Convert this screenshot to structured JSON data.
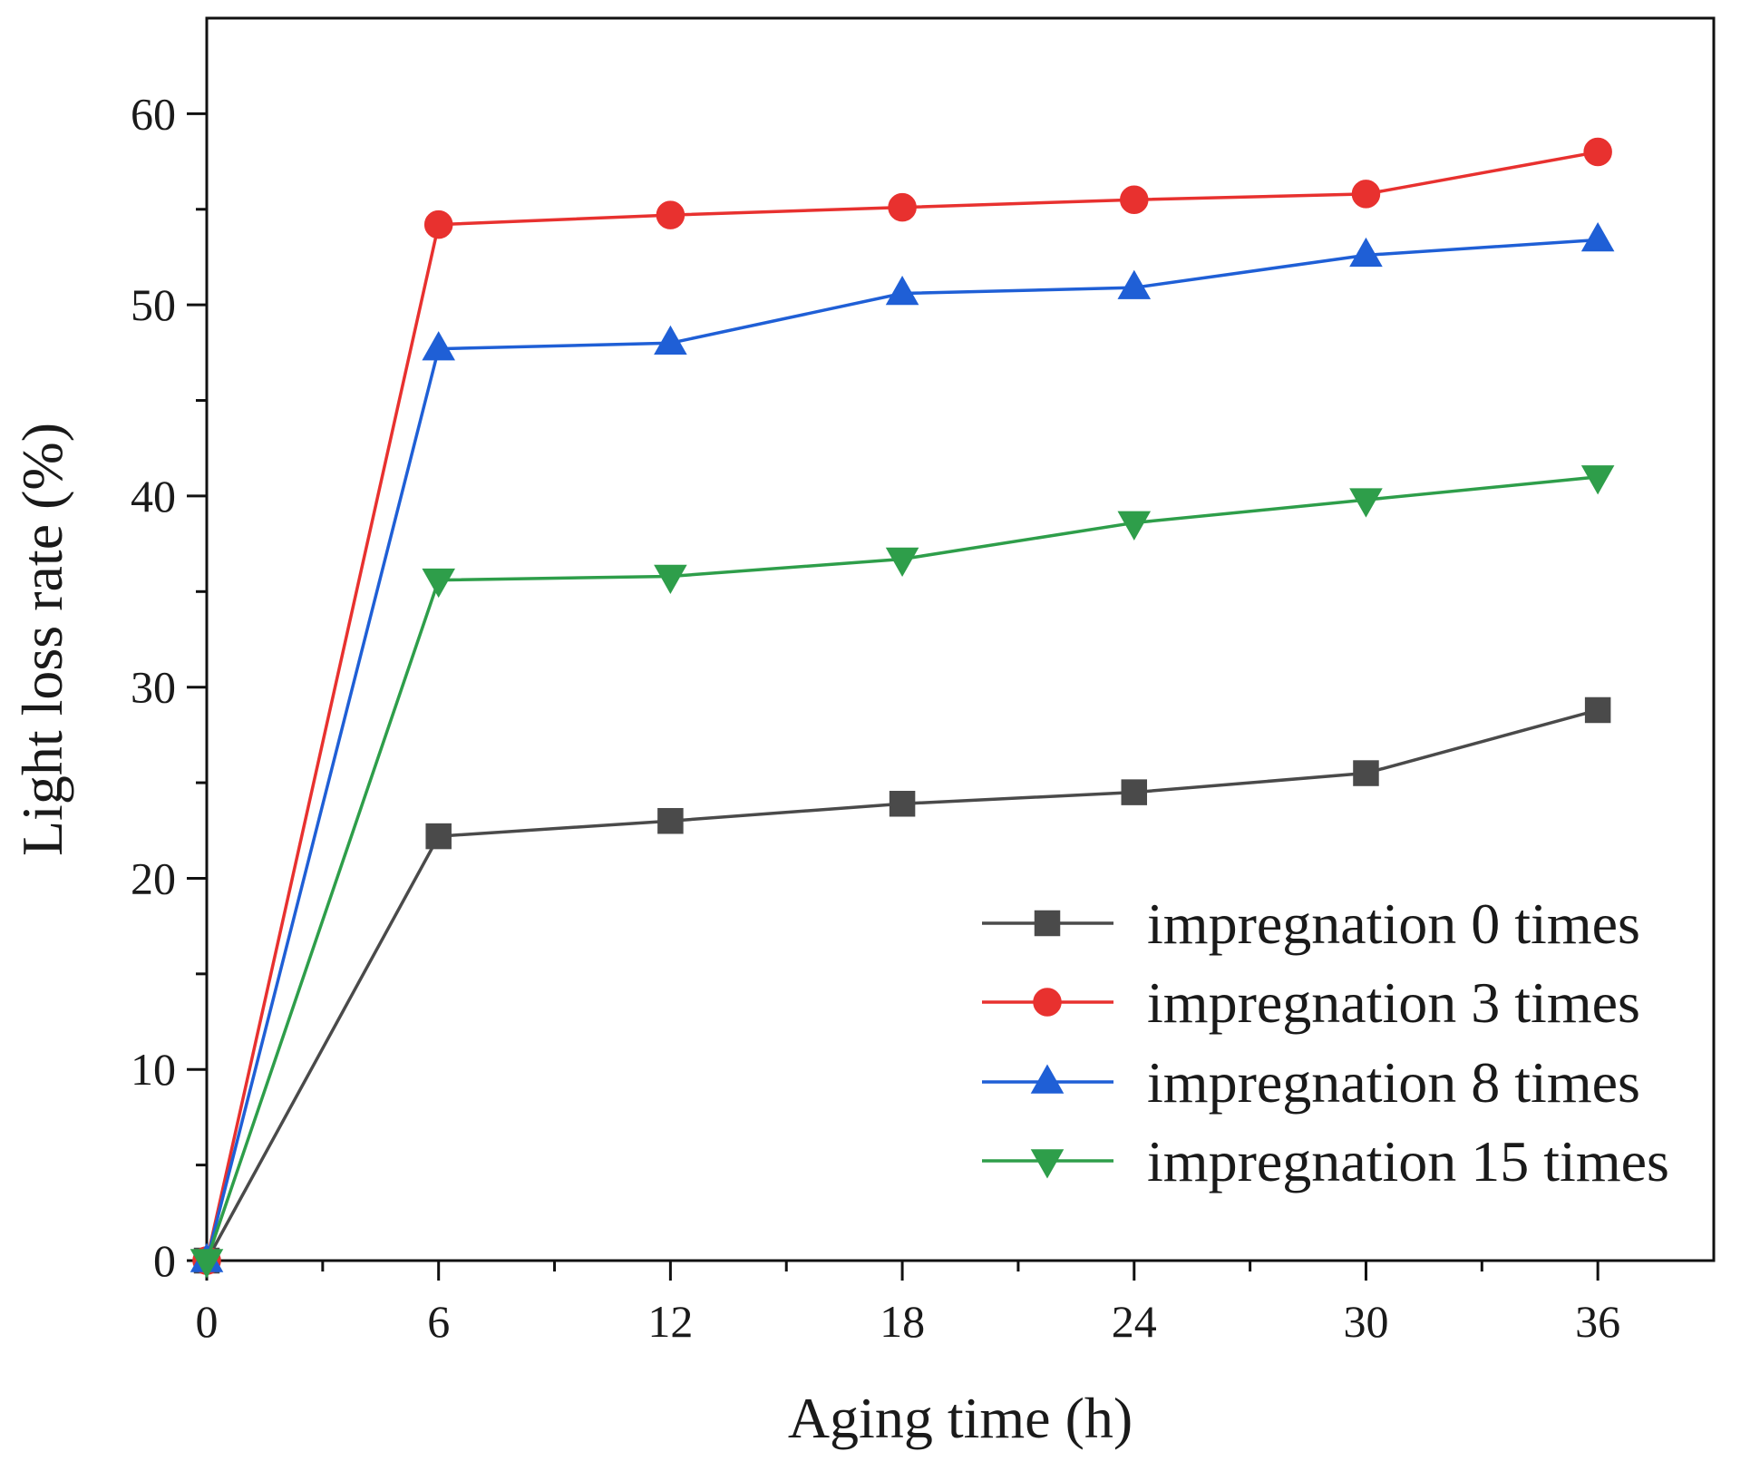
{
  "chart_data": {
    "type": "line",
    "title": "",
    "xlabel": "Aging time (h)",
    "ylabel": "Light loss rate (%)",
    "xlim": [
      0,
      39
    ],
    "ylim": [
      0,
      65
    ],
    "xticks": [
      0,
      6,
      12,
      18,
      24,
      30,
      36
    ],
    "yticks": [
      0,
      10,
      20,
      30,
      40,
      50,
      60
    ],
    "x_tick_labels": [
      "0",
      "6",
      "12",
      "18",
      "24",
      "30",
      "36"
    ],
    "y_tick_labels": [
      "0",
      "10",
      "20",
      "30",
      "40",
      "50",
      "60"
    ],
    "grid": false,
    "legend_position": "bottom-right",
    "x": [
      0,
      6,
      12,
      18,
      24,
      30,
      36
    ],
    "series": [
      {
        "name": "impregnation 0 times",
        "color": "#4a4a4a",
        "marker": "square",
        "values": [
          0,
          22.2,
          23.0,
          23.9,
          24.5,
          25.5,
          28.8
        ]
      },
      {
        "name": "impregnation 3 times",
        "color": "#e8312f",
        "marker": "circle",
        "values": [
          0,
          54.2,
          54.7,
          55.1,
          55.5,
          55.8,
          58.0
        ]
      },
      {
        "name": "impregnation 8 times",
        "color": "#1f5fd6",
        "marker": "triangle-up",
        "values": [
          0,
          47.7,
          48.0,
          50.6,
          50.9,
          52.6,
          53.4
        ]
      },
      {
        "name": "impregnation 15 times",
        "color": "#2e9e4a",
        "marker": "triangle-down",
        "values": [
          0,
          35.6,
          35.8,
          36.7,
          38.6,
          39.8,
          41.0
        ]
      }
    ]
  }
}
